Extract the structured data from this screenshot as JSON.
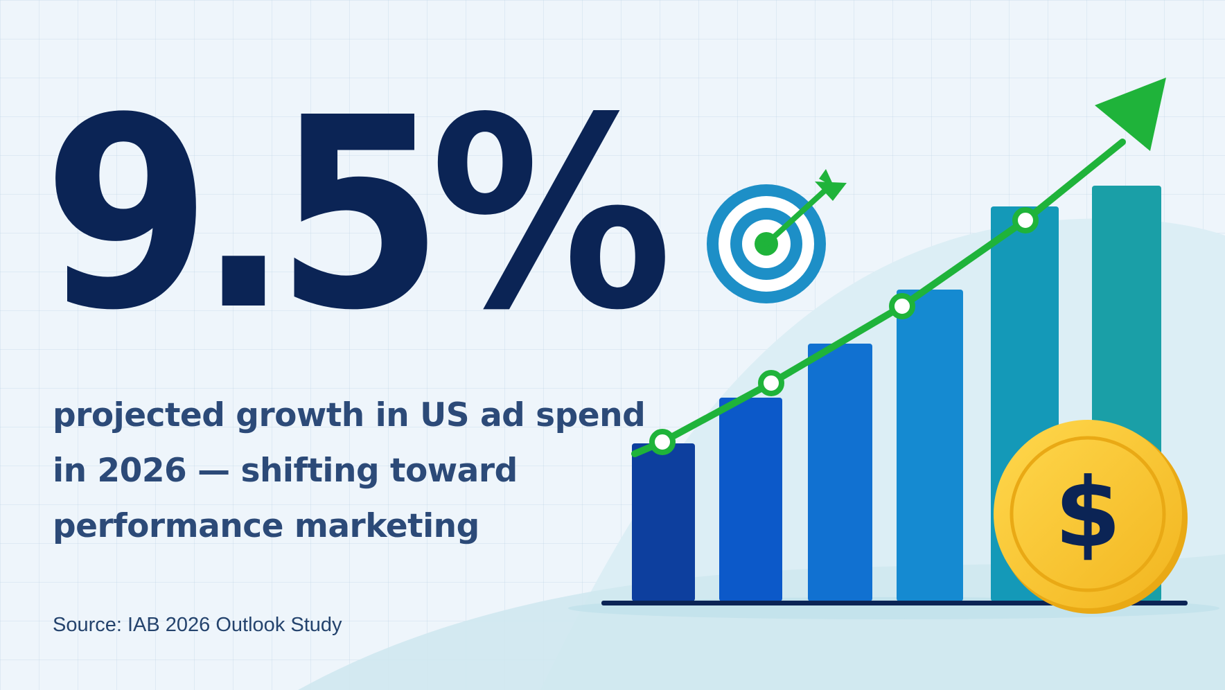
{
  "headline": {
    "stat": "9.5%"
  },
  "subtitle": {
    "lines": [
      "projected growth in US ad spend",
      "in 2026 — shifting toward",
      "performance marketing"
    ]
  },
  "source": "Source: IAB 2026 Outlook Study",
  "illustration": {
    "bar_count": 6,
    "bar_levels": [
      0.38,
      0.49,
      0.62,
      0.75,
      0.95,
      1.0
    ],
    "trend_icon": "trend-arrow-icon",
    "target_icon": "target-icon",
    "coin_icon": "dollar-coin-icon",
    "coin_symbol": "$",
    "colors": {
      "navy": "#0b2455",
      "text": "#2c4a78",
      "green": "#1fb33a",
      "coin": "#f7c431",
      "coin_rim": "#e9a915",
      "target_blue": "#1d8fc7",
      "bars": [
        "#0d3f9e",
        "#0c59c9",
        "#1171d1",
        "#158ad1",
        "#1499b8",
        "#1a9fa7"
      ]
    }
  }
}
